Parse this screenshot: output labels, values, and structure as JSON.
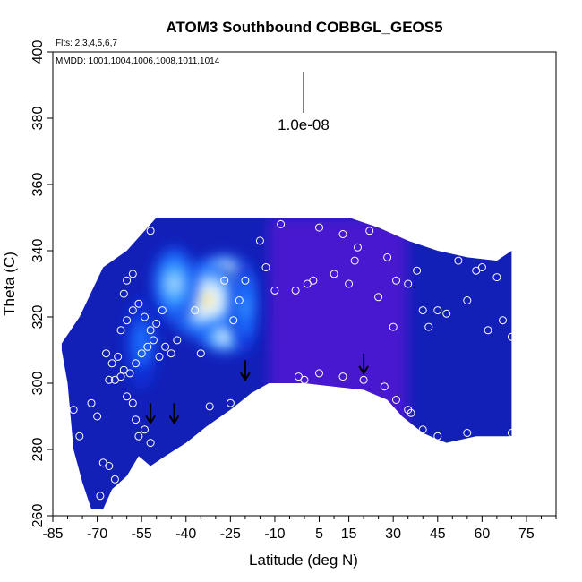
{
  "chart_data": {
    "type": "heatmap",
    "title": "ATOM3 Southbound COBBGL_GEOS5",
    "notes": {
      "flights": "Flts: 2,3,4,5,6,7",
      "dates": "MMDD: 1001,1004,1006,1008,1011,1014"
    },
    "xlabel": "Latitude (deg N)",
    "ylabel": "Theta (C)",
    "xlim": [
      -85,
      85
    ],
    "ylim": [
      260,
      400
    ],
    "x_ticks": [
      -85,
      -70,
      -55,
      -40,
      -25,
      -10,
      5,
      15,
      30,
      45,
      60,
      75
    ],
    "y_ticks": [
      260,
      280,
      300,
      320,
      340,
      360,
      380,
      400
    ],
    "scale_bar_label": "1.0e-08",
    "colormap": [
      "#00009e",
      "#0a2fd8",
      "#1f6fff",
      "#4fb8ff",
      "#e6f4ff",
      "#ffe24a",
      "#ff9c1a",
      "#d81e00"
    ],
    "field_background": "#1320b8",
    "grid": false,
    "hotspots": [
      {
        "lat": -27,
        "theta": 330,
        "level": 0.95,
        "spread_lat": 9,
        "spread_theta": 9
      },
      {
        "lat": -33,
        "theta": 325,
        "level": 0.72,
        "spread_lat": 14,
        "spread_theta": 12
      },
      {
        "lat": -27,
        "theta": 314,
        "level": 0.62,
        "spread_lat": 8,
        "spread_theta": 5
      },
      {
        "lat": -44,
        "theta": 330,
        "level": 0.5,
        "spread_lat": 8,
        "spread_theta": 12
      },
      {
        "lat": -55,
        "theta": 312,
        "level": 0.32,
        "spread_lat": 6,
        "spread_theta": 14
      },
      {
        "lat": -20,
        "theta": 323,
        "level": 0.4,
        "spread_lat": 5,
        "spread_theta": 14
      }
    ],
    "purple_band": {
      "lat_from": -12,
      "lat_to": 35,
      "color": "#5a18d8"
    },
    "data_boundary": {
      "top_theta": 350,
      "outline": [
        [
          -82,
          310
        ],
        [
          -80,
          300
        ],
        [
          -78,
          280
        ],
        [
          -75,
          270
        ],
        [
          -72,
          262
        ],
        [
          -68,
          262
        ],
        [
          -65,
          268
        ],
        [
          -60,
          272
        ],
        [
          -56,
          278
        ],
        [
          -52,
          275
        ],
        [
          -47,
          278
        ],
        [
          -40,
          282
        ],
        [
          -33,
          287
        ],
        [
          -25,
          292
        ],
        [
          -18,
          297
        ],
        [
          -12,
          300
        ],
        [
          0,
          300
        ],
        [
          10,
          299
        ],
        [
          20,
          298
        ],
        [
          28,
          295
        ],
        [
          33,
          290
        ],
        [
          40,
          285
        ],
        [
          45,
          283
        ],
        [
          48,
          282
        ],
        [
          58,
          284
        ],
        [
          70,
          284
        ],
        [
          70,
          340
        ],
        [
          65,
          337
        ],
        [
          55,
          338
        ],
        [
          45,
          340
        ],
        [
          35,
          343
        ],
        [
          25,
          347
        ],
        [
          15,
          350
        ],
        [
          -50,
          350
        ],
        [
          -60,
          340
        ],
        [
          -68,
          335
        ],
        [
          -76,
          320
        ],
        [
          -82,
          312
        ]
      ]
    },
    "samples": [
      {
        "lat": -78,
        "theta": 292
      },
      {
        "lat": -76,
        "theta": 284
      },
      {
        "lat": -72,
        "theta": 294
      },
      {
        "lat": -70,
        "theta": 290
      },
      {
        "lat": -69,
        "theta": 266
      },
      {
        "lat": -68,
        "theta": 276
      },
      {
        "lat": -66,
        "theta": 275
      },
      {
        "lat": -64,
        "theta": 271
      },
      {
        "lat": -66,
        "theta": 301
      },
      {
        "lat": -64,
        "theta": 301
      },
      {
        "lat": -62,
        "theta": 302
      },
      {
        "lat": -60,
        "theta": 296
      },
      {
        "lat": -58,
        "theta": 294
      },
      {
        "lat": -57,
        "theta": 289
      },
      {
        "lat": -56,
        "theta": 284
      },
      {
        "lat": -54,
        "theta": 286
      },
      {
        "lat": -52,
        "theta": 282
      },
      {
        "lat": -67,
        "theta": 309
      },
      {
        "lat": -65,
        "theta": 306
      },
      {
        "lat": -63,
        "theta": 308
      },
      {
        "lat": -61,
        "theta": 304
      },
      {
        "lat": -59,
        "theta": 303
      },
      {
        "lat": -57,
        "theta": 306
      },
      {
        "lat": -55,
        "theta": 309
      },
      {
        "lat": -53,
        "theta": 311
      },
      {
        "lat": -51,
        "theta": 313
      },
      {
        "lat": -49,
        "theta": 308
      },
      {
        "lat": -47,
        "theta": 311
      },
      {
        "lat": -45,
        "theta": 309
      },
      {
        "lat": -43,
        "theta": 313
      },
      {
        "lat": -62,
        "theta": 316
      },
      {
        "lat": -60,
        "theta": 319
      },
      {
        "lat": -58,
        "theta": 322
      },
      {
        "lat": -56,
        "theta": 324
      },
      {
        "lat": -54,
        "theta": 320
      },
      {
        "lat": -52,
        "theta": 316
      },
      {
        "lat": -50,
        "theta": 318
      },
      {
        "lat": -48,
        "theta": 322
      },
      {
        "lat": -61,
        "theta": 327
      },
      {
        "lat": -60,
        "theta": 331
      },
      {
        "lat": -58,
        "theta": 333
      },
      {
        "lat": -52,
        "theta": 346
      },
      {
        "lat": -37,
        "theta": 322
      },
      {
        "lat": -35,
        "theta": 309
      },
      {
        "lat": -32,
        "theta": 293
      },
      {
        "lat": -25,
        "theta": 294
      },
      {
        "lat": -24,
        "theta": 319
      },
      {
        "lat": -22,
        "theta": 325
      },
      {
        "lat": -27,
        "theta": 331
      },
      {
        "lat": -20,
        "theta": 331
      },
      {
        "lat": -15,
        "theta": 343
      },
      {
        "lat": -13,
        "theta": 335
      },
      {
        "lat": -8,
        "theta": 348
      },
      {
        "lat": -10,
        "theta": 328
      },
      {
        "lat": -3,
        "theta": 328
      },
      {
        "lat": 1,
        "theta": 330
      },
      {
        "lat": 3,
        "theta": 331
      },
      {
        "lat": 5,
        "theta": 347
      },
      {
        "lat": 10,
        "theta": 333
      },
      {
        "lat": 13,
        "theta": 345
      },
      {
        "lat": 15,
        "theta": 330
      },
      {
        "lat": 17,
        "theta": 337
      },
      {
        "lat": 18,
        "theta": 341
      },
      {
        "lat": 22,
        "theta": 346
      },
      {
        "lat": 25,
        "theta": 326
      },
      {
        "lat": 28,
        "theta": 338
      },
      {
        "lat": 31,
        "theta": 331
      },
      {
        "lat": 35,
        "theta": 330
      },
      {
        "lat": 38,
        "theta": 334
      },
      {
        "lat": 40,
        "theta": 322
      },
      {
        "lat": 42,
        "theta": 317
      },
      {
        "lat": 45,
        "theta": 322
      },
      {
        "lat": 48,
        "theta": 321
      },
      {
        "lat": 52,
        "theta": 337
      },
      {
        "lat": 55,
        "theta": 325
      },
      {
        "lat": 58,
        "theta": 334
      },
      {
        "lat": 60,
        "theta": 335
      },
      {
        "lat": 62,
        "theta": 316
      },
      {
        "lat": 65,
        "theta": 332
      },
      {
        "lat": 67,
        "theta": 319
      },
      {
        "lat": 70,
        "theta": 314
      },
      {
        "lat": 30,
        "theta": 317
      },
      {
        "lat": 27,
        "theta": 299
      },
      {
        "lat": 31,
        "theta": 295
      },
      {
        "lat": 36,
        "theta": 291
      },
      {
        "lat": 40,
        "theta": 286
      },
      {
        "lat": 45,
        "theta": 284
      },
      {
        "lat": 55,
        "theta": 285
      },
      {
        "lat": 70,
        "theta": 285
      },
      {
        "lat": -2,
        "theta": 302
      },
      {
        "lat": 0,
        "theta": 301
      },
      {
        "lat": 5,
        "theta": 303
      },
      {
        "lat": 13,
        "theta": 302
      },
      {
        "lat": 20,
        "theta": 301
      },
      {
        "lat": 35,
        "theta": 292
      }
    ],
    "arrows": [
      {
        "lat": -52,
        "theta": 288
      },
      {
        "lat": -44,
        "theta": 288
      },
      {
        "lat": -20,
        "theta": 301
      },
      {
        "lat": 20,
        "theta": 303
      }
    ]
  }
}
